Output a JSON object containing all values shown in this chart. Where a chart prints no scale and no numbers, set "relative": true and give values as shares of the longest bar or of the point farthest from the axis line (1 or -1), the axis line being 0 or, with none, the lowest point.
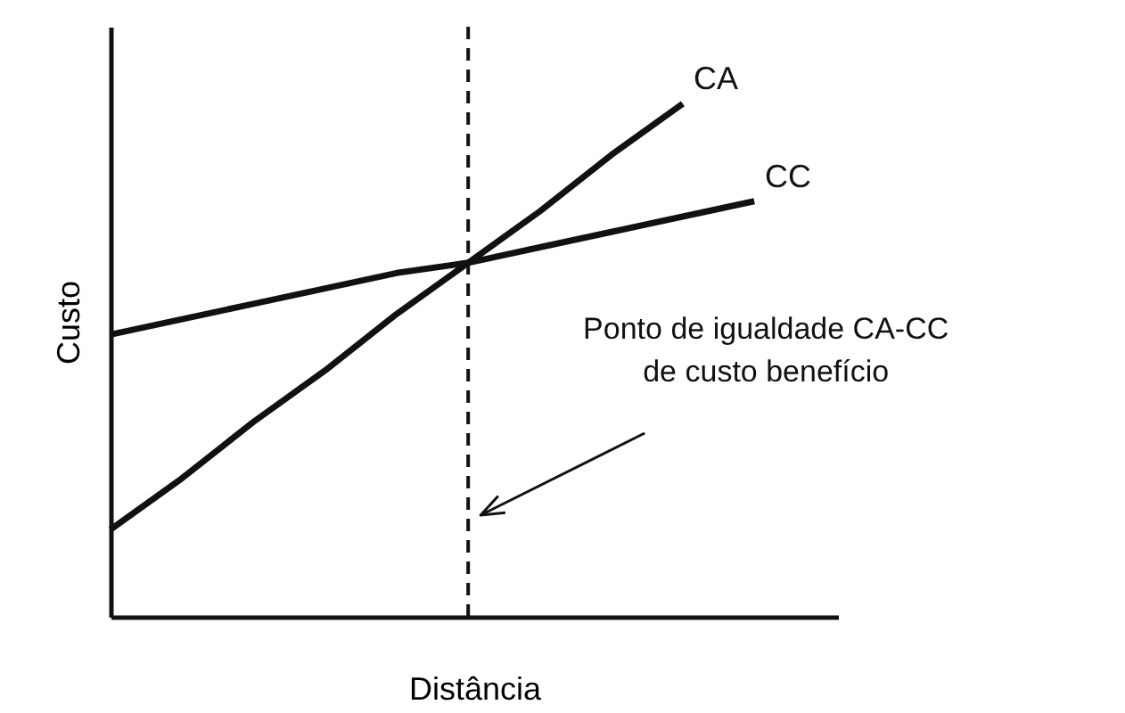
{
  "chart_data": {
    "type": "line",
    "relative": true,
    "xlabel": "Distância",
    "ylabel": "Custo",
    "categories": [
      null,
      null,
      null,
      null,
      null,
      null,
      null,
      null,
      null,
      null
    ],
    "grid": false,
    "line_style": "solid",
    "series": [
      {
        "name": "CA",
        "color": "#111111",
        "values": [
          0.17,
          0.27,
          0.38,
          0.48,
          0.59,
          0.69,
          0.79,
          0.9,
          1,
          null
        ]
      },
      {
        "name": "CC",
        "color": "#111111",
        "values": [
          0.55,
          0.58,
          0.61,
          0.64,
          0.67,
          0.69,
          0.72,
          0.75,
          0.78,
          0.81
        ]
      }
    ],
    "annotations": [
      "Ponto de igualdade CA-CC\nde custo benefício"
    ]
  }
}
